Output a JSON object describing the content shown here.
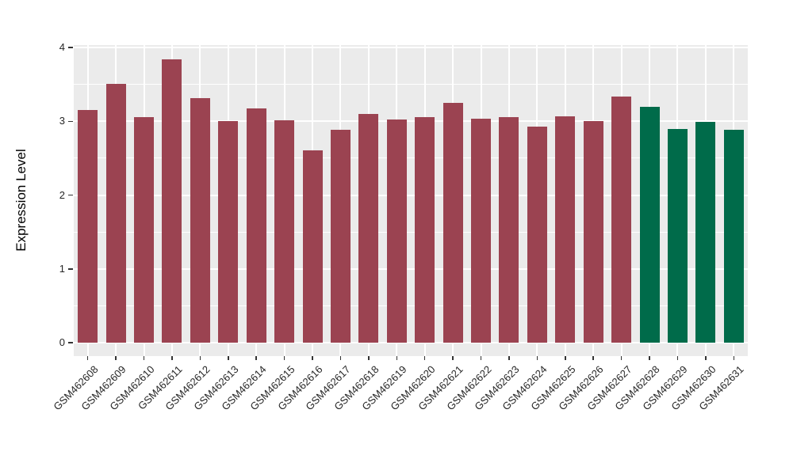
{
  "chart_data": {
    "type": "bar",
    "title": "",
    "xlabel": "",
    "ylabel": "Expression Level",
    "categories": [
      "GSM462608",
      "GSM462609",
      "GSM462610",
      "GSM462611",
      "GSM462612",
      "GSM462613",
      "GSM462614",
      "GSM462615",
      "GSM462616",
      "GSM462617",
      "GSM462618",
      "GSM462619",
      "GSM462620",
      "GSM462621",
      "GSM462622",
      "GSM462623",
      "GSM462624",
      "GSM462625",
      "GSM462626",
      "GSM462627",
      "GSM462628",
      "GSM462629",
      "GSM462630",
      "GSM462631"
    ],
    "values": [
      3.15,
      3.51,
      3.06,
      3.84,
      3.31,
      3.0,
      3.17,
      3.01,
      2.61,
      2.88,
      3.1,
      3.02,
      3.06,
      3.25,
      3.03,
      3.06,
      2.93,
      3.07,
      3.0,
      3.33,
      3.2,
      2.9,
      2.99,
      2.88
    ],
    "bar_groups": [
      "group1",
      "group1",
      "group1",
      "group1",
      "group1",
      "group1",
      "group1",
      "group1",
      "group1",
      "group1",
      "group1",
      "group1",
      "group1",
      "group1",
      "group1",
      "group1",
      "group1",
      "group1",
      "group1",
      "group1",
      "group2",
      "group2",
      "group2",
      "group2"
    ],
    "group_colors": {
      "group1": "#9B4351",
      "group2": "#006B4A"
    },
    "ylim": [
      -0.19,
      4.03
    ],
    "yticks": [
      0,
      1,
      2,
      3,
      4
    ],
    "ytick_labels": [
      "0",
      "1",
      "2",
      "3",
      "4"
    ],
    "yminor": [
      0.5,
      1.5,
      2.5,
      3.5
    ],
    "grid": true,
    "legend": "none",
    "panel_bg": "#EBEBEB",
    "grid_color": "#FFFFFF",
    "axis_text_color": "#262626",
    "x_label_angle_deg": 45
  }
}
